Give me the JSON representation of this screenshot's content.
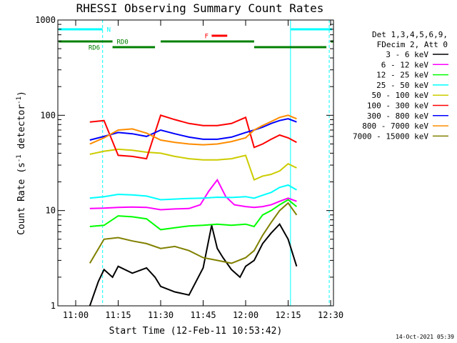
{
  "chart_data": {
    "type": "line",
    "title": "RHESSI Observing Summary Count Rates",
    "xlabel": "Start Time (12-Feb-11 10:53:42)",
    "ylabel_prefix": "Count Rate (s",
    "ylabel_sup": "-1",
    "ylabel_mid": " detector",
    "ylabel_sup2": "-1",
    "ylabel_suffix": ")",
    "y_scale": "log",
    "xlim": [
      "10:53:42",
      "12:31:00"
    ],
    "ylim": [
      1,
      1000
    ],
    "x_ticks": [
      "11:00",
      "11:15",
      "11:30",
      "11:45",
      "12:00",
      "12:15",
      "12:30"
    ],
    "y_ticks": [
      {
        "value": 1,
        "label": "1"
      },
      {
        "value": 10,
        "label": "10"
      },
      {
        "value": 100,
        "label": "100"
      },
      {
        "value": 1000,
        "label": "1000"
      }
    ],
    "legend_header": [
      "Det 1,3,4,5,6,9,",
      "FDecim 2, Att 0"
    ],
    "legend_position": "right",
    "series": [
      {
        "name": "3 - 6 keV",
        "color": "#000000",
        "x": [
          "11:05",
          "11:08",
          "11:10",
          "11:13",
          "11:15",
          "11:20",
          "11:25",
          "11:28",
          "11:30",
          "11:35",
          "11:40",
          "11:45",
          "11:48",
          "11:50",
          "11:52",
          "11:55",
          "11:58",
          "12:00",
          "12:03",
          "12:06",
          "12:09",
          "12:12",
          "12:15",
          "12:18"
        ],
        "y": [
          1.0,
          1.8,
          2.4,
          2.0,
          2.6,
          2.2,
          2.5,
          2.0,
          1.6,
          1.4,
          1.3,
          2.5,
          7.0,
          4.0,
          3.2,
          2.4,
          2.0,
          2.6,
          3.0,
          4.5,
          5.8,
          7.2,
          5.0,
          2.6
        ]
      },
      {
        "name": "6 - 12 keV",
        "color": "#ff00ff",
        "x": [
          "11:05",
          "11:10",
          "11:15",
          "11:20",
          "11:25",
          "11:30",
          "11:35",
          "11:40",
          "11:44",
          "11:47",
          "11:50",
          "11:53",
          "11:56",
          "12:00",
          "12:03",
          "12:06",
          "12:09",
          "12:12",
          "12:15",
          "12:18"
        ],
        "y": [
          10.5,
          10.6,
          10.8,
          10.9,
          10.8,
          10.2,
          10.4,
          10.5,
          11.5,
          16.0,
          21.0,
          14.0,
          11.5,
          11.0,
          10.8,
          11.0,
          11.5,
          12.5,
          13.5,
          12.5
        ]
      },
      {
        "name": "12 - 25 keV",
        "color": "#00ff00",
        "x": [
          "11:05",
          "11:10",
          "11:15",
          "11:20",
          "11:25",
          "11:30",
          "11:35",
          "11:40",
          "11:45",
          "11:50",
          "11:55",
          "12:00",
          "12:03",
          "12:06",
          "12:09",
          "12:12",
          "12:15",
          "12:18"
        ],
        "y": [
          6.8,
          7.0,
          8.8,
          8.6,
          8.2,
          6.3,
          6.6,
          6.9,
          7.0,
          7.2,
          7.0,
          7.2,
          6.8,
          9.0,
          10.0,
          11.5,
          13.0,
          11.0
        ]
      },
      {
        "name": "25 - 50 keV",
        "color": "#00ffff",
        "x": [
          "11:05",
          "11:10",
          "11:15",
          "11:20",
          "11:25",
          "11:30",
          "11:35",
          "11:40",
          "11:45",
          "11:50",
          "11:55",
          "12:00",
          "12:03",
          "12:06",
          "12:09",
          "12:12",
          "12:15",
          "12:18"
        ],
        "y": [
          13.5,
          14.0,
          14.8,
          14.6,
          14.2,
          13.0,
          13.2,
          13.4,
          13.5,
          13.8,
          13.7,
          14.0,
          13.5,
          14.5,
          15.5,
          17.5,
          18.5,
          16.5
        ]
      },
      {
        "name": "50 - 100 keV",
        "color": "#cccc00",
        "x": [
          "11:05",
          "11:10",
          "11:15",
          "11:20",
          "11:25",
          "11:30",
          "11:35",
          "11:40",
          "11:45",
          "11:50",
          "11:55",
          "12:00",
          "12:03",
          "12:06",
          "12:09",
          "12:12",
          "12:15",
          "12:18"
        ],
        "y": [
          39,
          42,
          44,
          43,
          41,
          40,
          37,
          35,
          34,
          34,
          35,
          38,
          21,
          23,
          24,
          26,
          31,
          28
        ]
      },
      {
        "name": "100 - 300 keV",
        "color": "#ff0000",
        "x": [
          "11:05",
          "11:10",
          "11:15",
          "11:20",
          "11:25",
          "11:30",
          "11:35",
          "11:40",
          "11:45",
          "11:50",
          "11:55",
          "12:00",
          "12:03",
          "12:06",
          "12:09",
          "12:12",
          "12:15",
          "12:18"
        ],
        "y": [
          85,
          88,
          38,
          37,
          35,
          100,
          90,
          82,
          78,
          78,
          82,
          95,
          46,
          50,
          56,
          62,
          58,
          52
        ]
      },
      {
        "name": "300 - 800 keV",
        "color": "#0000ff",
        "x": [
          "11:05",
          "11:10",
          "11:15",
          "11:20",
          "11:25",
          "11:30",
          "11:35",
          "11:40",
          "11:45",
          "11:50",
          "11:55",
          "12:00",
          "12:03",
          "12:06",
          "12:09",
          "12:12",
          "12:15",
          "12:18"
        ],
        "y": [
          55,
          60,
          66,
          64,
          60,
          70,
          64,
          59,
          56,
          56,
          59,
          66,
          70,
          75,
          82,
          88,
          92,
          85
        ]
      },
      {
        "name": "800 - 7000 keV",
        "color": "#ff8c00",
        "x": [
          "11:05",
          "11:10",
          "11:15",
          "11:20",
          "11:25",
          "11:30",
          "11:35",
          "11:40",
          "11:45",
          "11:50",
          "11:55",
          "12:00",
          "12:03",
          "12:06",
          "12:09",
          "12:12",
          "12:15",
          "12:18"
        ],
        "y": [
          50,
          58,
          70,
          72,
          65,
          55,
          52,
          50,
          49,
          50,
          53,
          58,
          70,
          78,
          86,
          95,
          100,
          92
        ]
      },
      {
        "name": "7000 - 15000 keV",
        "color": "#808000",
        "x": [
          "11:05",
          "11:10",
          "11:15",
          "11:20",
          "11:25",
          "11:30",
          "11:35",
          "11:40",
          "11:45",
          "11:50",
          "11:55",
          "12:00",
          "12:03",
          "12:06",
          "12:09",
          "12:12",
          "12:15",
          "12:18"
        ],
        "y": [
          2.8,
          5.0,
          5.2,
          4.8,
          4.5,
          4.0,
          4.2,
          3.8,
          3.2,
          3.0,
          2.8,
          3.2,
          3.8,
          5.5,
          7.5,
          10.0,
          12.0,
          9.0
        ]
      }
    ],
    "vertical_lines": [
      {
        "x": "10:53:42",
        "color": "#00ffff",
        "style": "solid"
      },
      {
        "x": "11:09:30",
        "color": "#00ffff",
        "style": "dashed"
      },
      {
        "x": "12:15:50",
        "color": "#00ffff",
        "style": "solid"
      },
      {
        "x": "12:29:30",
        "color": "#00ffff",
        "style": "dashed"
      }
    ],
    "flag_bars": [
      {
        "label": "N",
        "color": "#00ffff",
        "level": 0,
        "segments": [
          [
            "10:54:00",
            "11:09:30"
          ],
          [
            "12:16:00",
            "12:30:30"
          ]
        ],
        "label_at": "11:11:00"
      },
      {
        "label": "F",
        "color": "#ff0000",
        "level": 1,
        "segments": [
          [
            "11:48:00",
            "11:53:30"
          ]
        ],
        "label_at": "11:45:30"
      },
      {
        "label": "RD0",
        "color": "#008000",
        "level": 2,
        "segments": [
          [
            "10:54:00",
            "11:13:00"
          ],
          [
            "11:30:00",
            "12:03:00"
          ]
        ],
        "label_at": "11:14:30"
      },
      {
        "label": "RD6",
        "color": "#008000",
        "level": 3,
        "segments": [
          [
            "11:13:00",
            "11:28:00"
          ],
          [
            "12:03:00",
            "12:28:30"
          ]
        ],
        "label_at": "11:04:30"
      }
    ],
    "flag_bar_extras": [
      [
        "12:30:00",
        "12:31:00"
      ]
    ],
    "grid": false
  },
  "timestamp": "14-Oct-2021 05:39"
}
